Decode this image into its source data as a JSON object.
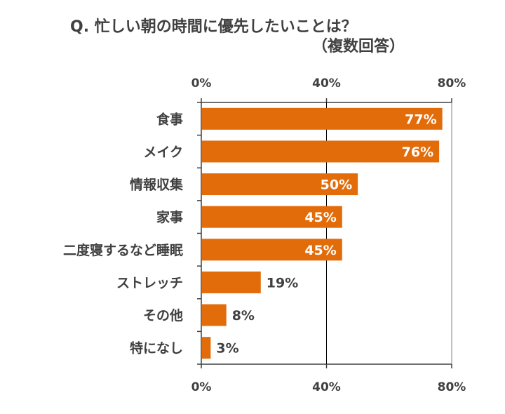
{
  "chart_data": {
    "type": "bar",
    "orientation": "horizontal",
    "title": "Q.  忙しい朝の時間に優先したいことは？",
    "subtitle": "（複数回答）",
    "categories": [
      "食事",
      "メイク",
      "情報収集",
      "家事",
      "二度寝するなど睡眠",
      "ストレッチ",
      "その他",
      "特になし"
    ],
    "values": [
      77,
      76,
      50,
      45,
      45,
      19,
      8,
      3
    ],
    "data_labels": [
      "77%",
      "76%",
      "50%",
      "45%",
      "45%",
      "19%",
      "8%",
      "3%"
    ],
    "xlim": [
      0,
      80
    ],
    "xticks": [
      0,
      40,
      80
    ],
    "xtick_labels": [
      "0%",
      "40%",
      "80%"
    ],
    "grid": true,
    "colors": {
      "bar": "#E36C0A",
      "text": "#404040",
      "label_inside": "#FFFFFF"
    }
  }
}
